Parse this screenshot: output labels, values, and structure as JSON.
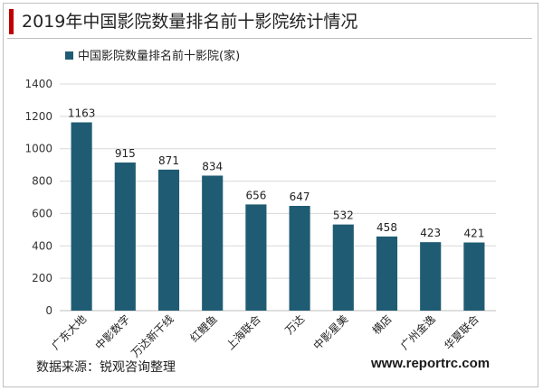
{
  "header": {
    "title": "2019年中国影院数量排名前十影院统计情况"
  },
  "footer": {
    "source": "数据来源：锐观咨询整理",
    "site": "www.reportrc.com"
  },
  "colors": {
    "bar": "#1f5c73",
    "accent": "#c00000"
  },
  "chart_data": {
    "type": "bar",
    "title": "",
    "xlabel": "",
    "ylabel": "",
    "ylim": [
      0,
      1400
    ],
    "yticks": [
      0,
      200,
      400,
      600,
      800,
      1000,
      1200,
      1400
    ],
    "grid": true,
    "legend": "top-left",
    "categories": [
      "广东大地",
      "中影数字",
      "万达新干线",
      "红鲤鱼",
      "上海联合",
      "万达",
      "中影星美",
      "横店",
      "广州金逸",
      "华夏联合"
    ],
    "series": [
      {
        "name": "中国影院数量排名前十影院(家)",
        "values": [
          1163,
          915,
          871,
          834,
          656,
          647,
          532,
          458,
          423,
          421
        ]
      }
    ]
  }
}
